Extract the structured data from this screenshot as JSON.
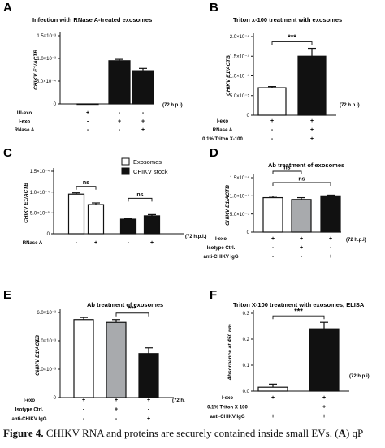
{
  "chart_data": [
    {
      "panel": "A",
      "type": "bar",
      "title": "Infection with RNase A-treated exosomes",
      "ylabel": "CHIKV E1/ACTB",
      "xnote": "(72 h.p.i)",
      "yticks": [
        "0",
        "5.0×10⁻⁴",
        "1.0×10⁻³",
        "1.5×10⁻³"
      ],
      "ylim": [
        0,
        0.0015
      ],
      "values": [
        0,
        0.00095,
        0.00073
      ],
      "errors": [
        0,
        3e-05,
        5e-05
      ],
      "fills": [
        "#ffffff",
        "#111111",
        "#111111"
      ],
      "sig": [],
      "rows": [
        {
          "label": "UI-exo",
          "marks": [
            "+",
            "-",
            "-"
          ]
        },
        {
          "label": "I-exo",
          "marks": [
            "-",
            "+",
            "+"
          ]
        },
        {
          "label": "RNase A",
          "marks": [
            "-",
            "-",
            "+"
          ]
        }
      ]
    },
    {
      "panel": "B",
      "type": "bar",
      "title": "Triton x-100 treatment with exosomes",
      "ylabel": "CHIKV E1/ACTB",
      "xnote": "(72 h.p.i)",
      "yticks": [
        "0",
        "5.0×10⁻⁵",
        "1.0×10⁻⁴",
        "1.5×10⁻⁴",
        "2.0×10⁻⁴"
      ],
      "ylim": [
        0,
        0.0002
      ],
      "values": [
        7e-05,
        0.00015
      ],
      "errors": [
        3e-06,
        2e-05
      ],
      "fills": [
        "#ffffff",
        "#111111"
      ],
      "sig": [
        {
          "from": 0,
          "to": 1,
          "label": "***"
        }
      ],
      "rows": [
        {
          "label": "I-exo",
          "marks": [
            "+",
            "+"
          ]
        },
        {
          "label": "RNase A",
          "marks": [
            "-",
            "+"
          ]
        },
        {
          "label": "0.1% Triton X-100",
          "marks": [
            "-",
            "+"
          ]
        }
      ]
    },
    {
      "panel": "C",
      "type": "bar",
      "ylabel": "CHIKV E1/ACTB",
      "xnote": "(72 h.p.i.)",
      "yticks": [
        "0",
        "5.0×10⁻⁵",
        "1.0×10⁻⁴",
        "1.5×10⁻⁴"
      ],
      "ylim": [
        0,
        0.00015
      ],
      "groups": 2,
      "values": [
        9.5e-05,
        7e-05,
        3.5e-05,
        4.3e-05
      ],
      "errors": [
        3e-06,
        4e-06,
        2e-06,
        3e-06
      ],
      "fills": [
        "#ffffff",
        "#ffffff",
        "#111111",
        "#111111"
      ],
      "sig": [
        {
          "from": 0,
          "to": 1,
          "label": "ns"
        },
        {
          "from": 2,
          "to": 3,
          "label": "ns"
        }
      ],
      "legend": [
        {
          "label": "Exosomes",
          "fill": "#ffffff"
        },
        {
          "label": "CHIKV stock",
          "fill": "#111111"
        }
      ],
      "rows": [
        {
          "label": "RNase A",
          "marks": [
            "-",
            "+",
            "-",
            "+"
          ]
        }
      ]
    },
    {
      "panel": "D",
      "type": "bar",
      "title": "Ab treatment of exosomes",
      "ylabel": "CHIKV E1/ACTB",
      "xnote": "(72 h.p.i)",
      "yticks": [
        "0",
        "5.0×10⁻⁵",
        "1.0×10⁻⁴",
        "1.5×10⁻⁴"
      ],
      "ylim": [
        0,
        0.00015
      ],
      "values": [
        9.5e-05,
        9e-05,
        0.0001
      ],
      "errors": [
        4e-06,
        5e-06,
        2e-06
      ],
      "fills": [
        "#ffffff",
        "#a8aaad",
        "#111111"
      ],
      "sig": [
        {
          "from": 0,
          "to": 1,
          "label": "ns"
        },
        {
          "from": 0,
          "to": 2,
          "label": "ns"
        }
      ],
      "rows": [
        {
          "label": "I-exo",
          "marks": [
            "+",
            "+",
            "+"
          ]
        },
        {
          "label": "Isotype Ctrl.",
          "marks": [
            "-",
            "+",
            "-"
          ]
        },
        {
          "label": "anti-CHIKV IgG",
          "marks": [
            "-",
            "-",
            "+"
          ]
        }
      ]
    },
    {
      "panel": "E",
      "type": "bar",
      "title": "Ab treatment of exosomes",
      "ylabel": "CHIKV E1/ACTB",
      "xnote": "(72 h.",
      "yticks": [
        "0",
        "2.0×10⁻³",
        "4.0×10⁻³",
        "6.0×10⁻³"
      ],
      "ylim": [
        0,
        0.006
      ],
      "values": [
        0.0055,
        0.0053,
        0.0031
      ],
      "errors": [
        0.00015,
        0.0002,
        0.0004
      ],
      "fills": [
        "#ffffff",
        "#a8aaad",
        "#111111"
      ],
      "sig": [
        {
          "from": 1,
          "to": 2,
          "label": "***"
        }
      ],
      "rows": [
        {
          "label": "I-exo",
          "marks": [
            "+",
            "+",
            "+"
          ]
        },
        {
          "label": "Isotype Ctrl.",
          "marks": [
            "-",
            "+",
            "-"
          ]
        },
        {
          "label": "anti-CHIKV IgG",
          "marks": [
            "-",
            "-",
            "+"
          ]
        }
      ]
    },
    {
      "panel": "F",
      "type": "bar",
      "title": "Triton X-100 treatment with exosomes, ELISA",
      "ylabel": "Absorbance at 450 nm",
      "xnote": "(72 h.p.i)",
      "yticks": [
        "0.0",
        "0.1",
        "0.2",
        "0.3"
      ],
      "ylim": [
        0,
        0.3
      ],
      "values": [
        0.015,
        0.24
      ],
      "errors": [
        0.012,
        0.025
      ],
      "fills": [
        "#ffffff",
        "#111111"
      ],
      "sig": [
        {
          "from": 0,
          "to": 1,
          "label": "***"
        }
      ],
      "rows": [
        {
          "label": "I-exo",
          "marks": [
            "+",
            "+"
          ]
        },
        {
          "label": "0.1% Triton X-100",
          "marks": [
            "-",
            "+"
          ]
        },
        {
          "label": "anti-CHIKV IgG",
          "marks": [
            "+",
            "+"
          ]
        }
      ]
    }
  ],
  "caption": {
    "lead": "Figure 4.",
    "text": " CHIKV RNA and proteins are securely contained inside small EVs. (",
    "bold": "A",
    "tail": ") qP"
  }
}
